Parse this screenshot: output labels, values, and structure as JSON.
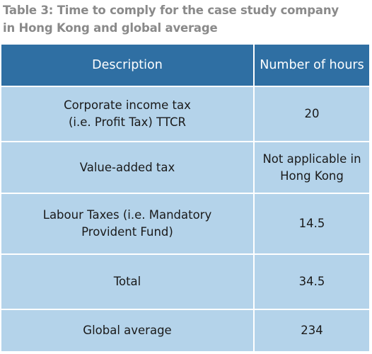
{
  "caption": {
    "line1": "Table 3: Time to comply for the case study company",
    "line2": " in Hong Kong and global average"
  },
  "table": {
    "headers": [
      "Description",
      "Number of hours"
    ],
    "rows": [
      {
        "description": [
          "Corporate income tax",
          "(i.e. Profit Tax) TTCR"
        ],
        "hours": [
          "20"
        ]
      },
      {
        "description": [
          "Value-added tax"
        ],
        "hours": [
          "Not applicable in",
          "Hong Kong"
        ]
      },
      {
        "description": [
          "Labour Taxes (i.e. Mandatory",
          "Provident Fund)"
        ],
        "hours": [
          "14.5"
        ]
      },
      {
        "description": [
          "Total"
        ],
        "hours": [
          "34.5"
        ]
      },
      {
        "description": [
          "Global average"
        ],
        "hours": [
          "234"
        ]
      }
    ]
  },
  "colors": {
    "header_bg": "#2f6fa3",
    "row_bg": "#b4d3ea",
    "caption_text": "#8a8a8a"
  }
}
